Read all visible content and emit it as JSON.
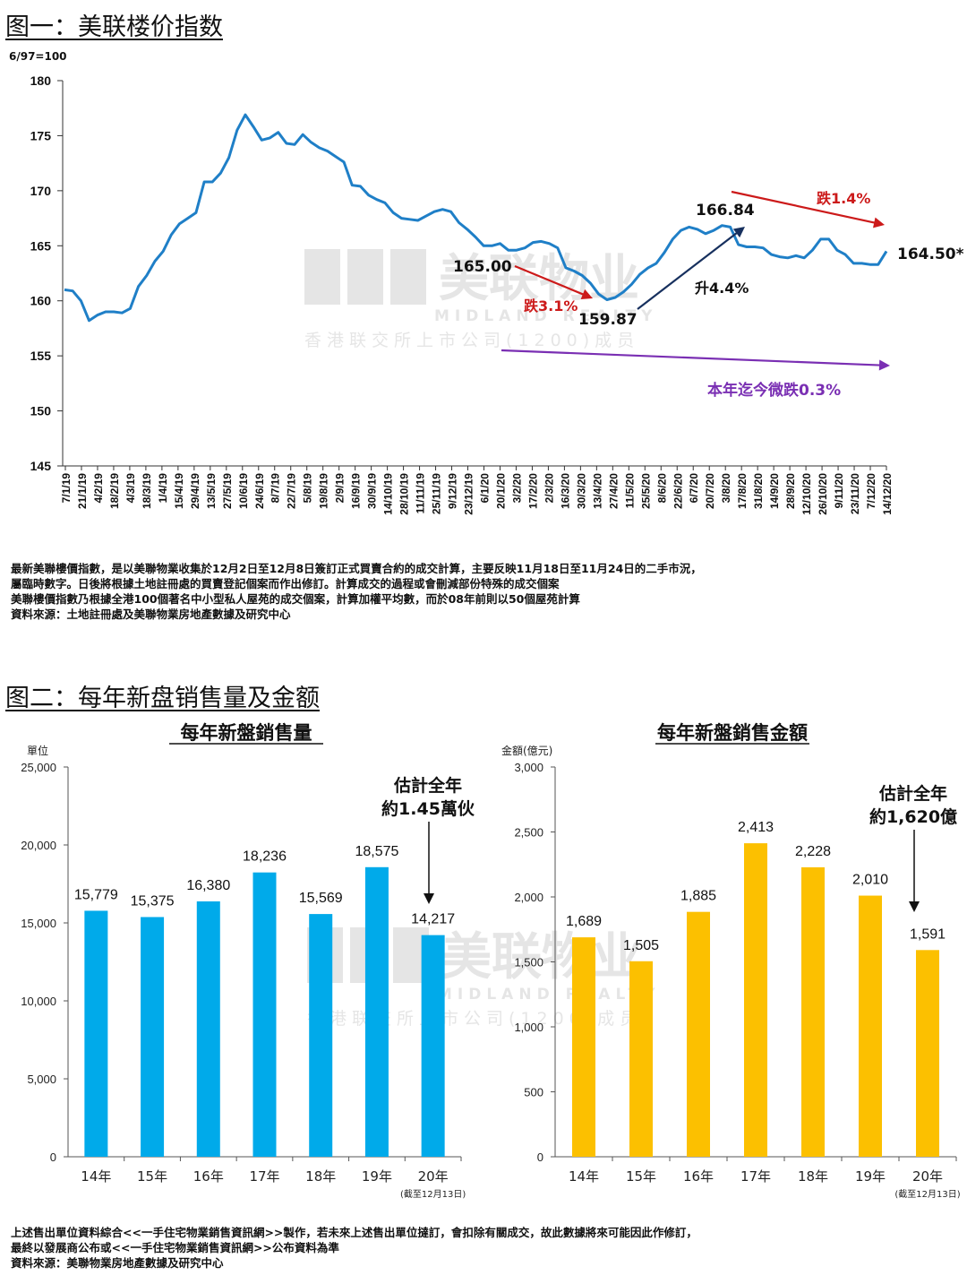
{
  "figure1": {
    "heading": "图一：美联楼价指数",
    "chart_data": {
      "type": "line",
      "ylabel": "6/97=100",
      "ylim": [
        145,
        180
      ],
      "yticks": [
        145,
        150,
        155,
        160,
        165,
        170,
        175,
        180
      ],
      "x_labels": [
        "7/1/19",
        "21/1/19",
        "4/2/19",
        "18/2/19",
        "4/3/19",
        "18/3/19",
        "1/4/19",
        "15/4/19",
        "29/4/19",
        "13/5/19",
        "27/5/19",
        "10/6/19",
        "24/6/19",
        "8/7/19",
        "22/7/19",
        "5/8/19",
        "19/8/19",
        "2/9/19",
        "16/9/19",
        "30/9/19",
        "14/10/19",
        "28/10/19",
        "11/11/19",
        "25/11/19",
        "9/12/19",
        "23/12/19",
        "6/1/20",
        "20/1/20",
        "3/2/20",
        "17/2/20",
        "2/3/20",
        "16/3/20",
        "30/3/20",
        "13/4/20",
        "27/4/20",
        "11/5/20",
        "25/5/20",
        "8/6/20",
        "22/6/20",
        "6/7/20",
        "20/7/20",
        "3/8/20",
        "17/8/20",
        "31/8/20",
        "14/9/20",
        "28/9/20",
        "12/10/20",
        "26/10/20",
        "9/11/20",
        "23/11/20",
        "7/12/20",
        "14/12/20"
      ],
      "series": [
        {
          "values": [
            161.0,
            160.9,
            160.0,
            158.2,
            158.7,
            159.0,
            159.0,
            158.9,
            159.3,
            161.3,
            162.3,
            163.6,
            164.5,
            166.0,
            167.0,
            167.5,
            168.0,
            170.8,
            170.8,
            171.6,
            173.0,
            175.5,
            176.9,
            175.8,
            174.6,
            174.8,
            175.3,
            174.3,
            174.2,
            175.1,
            174.4,
            173.9,
            173.6,
            173.1,
            172.6,
            170.5,
            170.4,
            169.6,
            169.2,
            168.9,
            168.0,
            167.5,
            167.4,
            167.3,
            167.7,
            168.1,
            168.3,
            168.1,
            167.1,
            166.5,
            165.8,
            165.0,
            165.0,
            165.2,
            164.6,
            164.6,
            164.8,
            165.3,
            165.4,
            165.2,
            164.8,
            163.0,
            162.7,
            162.3,
            161.6,
            160.6,
            160.1,
            160.3,
            160.8,
            161.5,
            162.4,
            163.0,
            163.4,
            164.4,
            165.6,
            166.4,
            166.7,
            166.5,
            166.1,
            166.4,
            166.84,
            166.7,
            165.1,
            164.9,
            164.9,
            164.8,
            164.2,
            164.0,
            163.9,
            164.1,
            163.9,
            164.6,
            165.6,
            165.6,
            164.6,
            164.2,
            163.4,
            163.4,
            163.3,
            163.3,
            164.5
          ]
        }
      ],
      "annotations": [
        {
          "text": "165.00",
          "color": "#111111"
        },
        {
          "text": "跌3.1%",
          "color": "#cc1a1a"
        },
        {
          "text": "159.87",
          "color": "#111111"
        },
        {
          "text": "166.84",
          "color": "#111111"
        },
        {
          "text": "升4.4%",
          "color": "#111111"
        },
        {
          "text": "跌1.4%",
          "color": "#cc1a1a"
        },
        {
          "text": "164.50*",
          "color": "#111111"
        },
        {
          "text": "本年迄今微跌0.3%",
          "color": "#7a2fb3"
        }
      ],
      "line_color": "#1f7fc7",
      "grid": false
    },
    "notes": [
      "最新美聯樓價指數，是以美聯物業收集於12月2日至12月8日簽訂正式買賣合約的成交計算，主要反映11月18日至11月24日的二手市況，",
      "屬臨時數字。日後將根據土地註冊處的買賣登記個案而作出修訂。計算成交的過程或會刪減部份特殊的成交個案",
      "美聯樓價指數乃根據全港100個著名中小型私人屋苑的成交個案，計算加權平均數，而於08年前則以50個屋苑計算",
      "資料來源：土地註冊處及美聯物業房地產數據及研究中心"
    ]
  },
  "figure2": {
    "heading": "图二：每年新盘销售量及金额",
    "chart_data": [
      {
        "type": "bar",
        "title": "每年新盤銷售量",
        "ylabel": "單位",
        "ylim": [
          0,
          25000
        ],
        "yticks": [
          "0",
          "5,000",
          "10,000",
          "15,000",
          "20,000",
          "25,000"
        ],
        "categories": [
          "14年",
          "15年",
          "16年",
          "17年",
          "18年",
          "19年",
          "20年"
        ],
        "category_note": "(截至12月13日)",
        "values": [
          15779,
          15375,
          16380,
          18236,
          15569,
          18575,
          14217
        ],
        "value_labels": [
          "15,779",
          "15,375",
          "16,380",
          "18,236",
          "15,569",
          "18,575",
          "14,217"
        ],
        "color": "#00aaea",
        "annotation": [
          "估計全年",
          "約1.45萬伙"
        ]
      },
      {
        "type": "bar",
        "title": "每年新盤銷售金額",
        "ylabel": "金額(億元)",
        "ylim": [
          0,
          3000
        ],
        "yticks": [
          "0",
          "500",
          "1,000",
          "1,500",
          "2,000",
          "2,500",
          "3,000"
        ],
        "categories": [
          "14年",
          "15年",
          "16年",
          "17年",
          "18年",
          "19年",
          "20年"
        ],
        "category_note": "(截至12月13日)",
        "values": [
          1689,
          1505,
          1885,
          2413,
          2228,
          2010,
          1591
        ],
        "value_labels": [
          "1,689",
          "1,505",
          "1,885",
          "2,413",
          "2,228",
          "2,010",
          "1,591"
        ],
        "color": "#fcc000",
        "annotation": [
          "估計全年",
          "約1,620億"
        ]
      }
    ],
    "notes": [
      "上述售出單位資料綜合<<一手住宅物業銷售資訊網>>製作，若未來上述售出單位撻訂，會扣除有關成交，故此數據將來可能因此作修訂，",
      "最終以發展商公布或<<一手住宅物業銷售資訊網>>公布資料為準",
      "資料來源：美聯物業房地產數據及研究中心"
    ]
  },
  "watermark": {
    "brand": "美联物业",
    "brand_en": "MIDLAND REALTY",
    "tagline": "香港联交所上市公司(1200)成员"
  }
}
